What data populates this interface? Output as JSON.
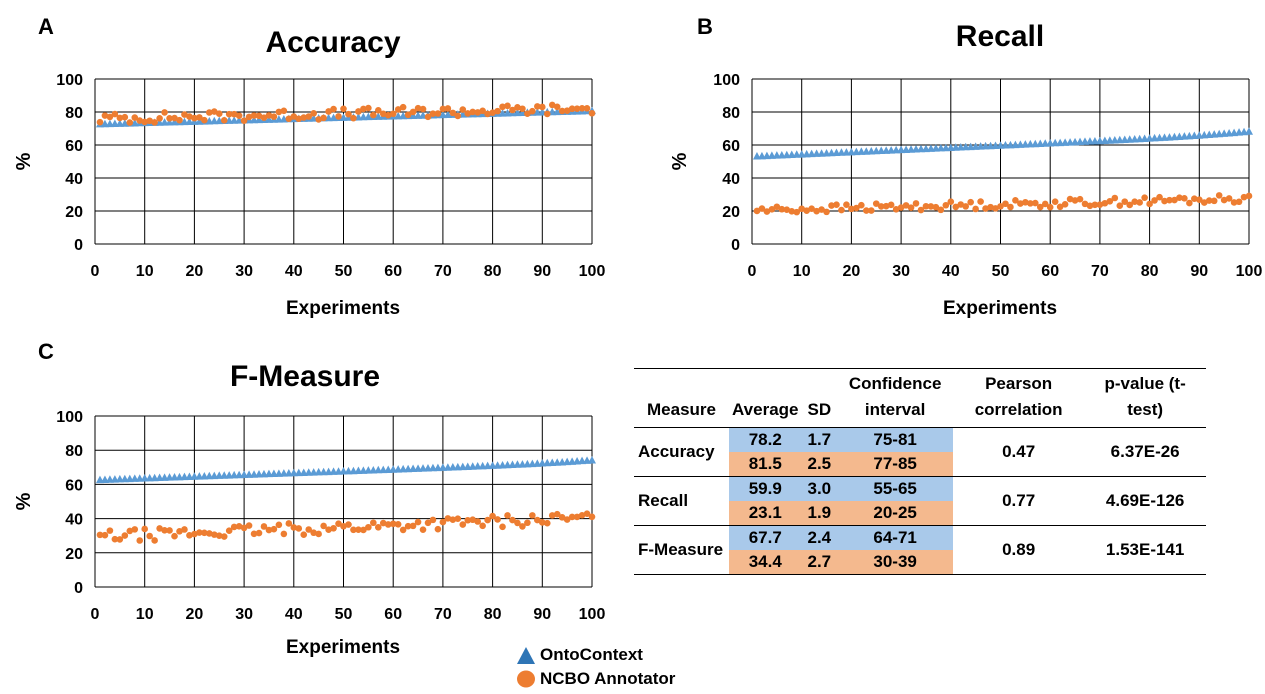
{
  "panels": [
    {
      "letter": "A"
    },
    {
      "letter": "B"
    },
    {
      "letter": "C"
    }
  ],
  "chart_data": [
    {
      "type": "scatter",
      "title": "Accuracy",
      "xlabel": "Experiments",
      "ylabel": "%",
      "xlim": [
        0,
        100
      ],
      "ylim": [
        0,
        100
      ],
      "xticks": [
        "0",
        "10",
        "20",
        "30",
        "40",
        "50",
        "60",
        "70",
        "80",
        "90",
        "100"
      ],
      "yticks": [
        "0",
        "20",
        "40",
        "60",
        "80",
        "100"
      ],
      "grid": true,
      "series": [
        {
          "name": "OntoContext",
          "marker": "triangle",
          "color": "#5b9bd5",
          "start": 72.5,
          "end": 80.5,
          "curve": "linear"
        },
        {
          "name": "NCBO Annotator",
          "marker": "circle",
          "color": "#ed7d31",
          "mean": 81.5,
          "spread": 2.5,
          "start": 76,
          "end": 82
        }
      ]
    },
    {
      "type": "scatter",
      "title": "Recall",
      "xlabel": "Experiments",
      "ylabel": "%",
      "xlim": [
        0,
        100
      ],
      "ylim": [
        0,
        100
      ],
      "xticks": [
        "0",
        "10",
        "20",
        "30",
        "40",
        "50",
        "60",
        "70",
        "80",
        "90",
        "100"
      ],
      "yticks": [
        "0",
        "20",
        "40",
        "60",
        "80",
        "100"
      ],
      "grid": true,
      "series": [
        {
          "name": "OntoContext",
          "marker": "triangle",
          "color": "#5b9bd5",
          "start": 53,
          "end": 68,
          "curve": "tail"
        },
        {
          "name": "NCBO Annotator",
          "marker": "circle",
          "color": "#ed7d31",
          "mean": 23.1,
          "spread": 1.9,
          "start": 20.5,
          "end": 27.5
        }
      ]
    },
    {
      "type": "scatter",
      "title": "F-Measure",
      "xlabel": "Experiments",
      "ylabel": "%",
      "xlim": [
        0,
        100
      ],
      "ylim": [
        0,
        100
      ],
      "xticks": [
        "0",
        "10",
        "20",
        "30",
        "40",
        "50",
        "60",
        "70",
        "80",
        "90",
        "100"
      ],
      "yticks": [
        "0",
        "20",
        "40",
        "60",
        "80",
        "100"
      ],
      "grid": true,
      "series": [
        {
          "name": "OntoContext",
          "marker": "triangle",
          "color": "#5b9bd5",
          "start": 62.5,
          "end": 74,
          "curve": "tail"
        },
        {
          "name": "NCBO Annotator",
          "marker": "circle",
          "color": "#ed7d31",
          "mean": 34.4,
          "spread": 2.7,
          "start": 29.5,
          "end": 40.5
        }
      ]
    }
  ],
  "table": {
    "headers": [
      "Measure",
      "Average",
      "SD",
      "Confidence interval",
      "Pearson correlation",
      "p-value (t-test)"
    ],
    "groups": [
      {
        "measure": "Accuracy",
        "pearson": "0.47",
        "pvalue": "6.37E-26",
        "onto": {
          "avg": "78.2",
          "sd": "1.7",
          "ci": "75-81"
        },
        "ncbo": {
          "avg": "81.5",
          "sd": "2.5",
          "ci": "77-85"
        }
      },
      {
        "measure": "Recall",
        "pearson": "0.77",
        "pvalue": "4.69E-126",
        "onto": {
          "avg": "59.9",
          "sd": "3.0",
          "ci": "55-65"
        },
        "ncbo": {
          "avg": "23.1",
          "sd": "1.9",
          "ci": "20-25"
        }
      },
      {
        "measure": "F-Measure",
        "pearson": "0.89",
        "pvalue": "1.53E-141",
        "onto": {
          "avg": "67.7",
          "sd": "2.4",
          "ci": "64-71"
        },
        "ncbo": {
          "avg": "34.4",
          "sd": "2.7",
          "ci": "30-39"
        }
      }
    ]
  },
  "legend": {
    "items": [
      {
        "label": "OntoContext",
        "icon": "triangle-marker",
        "color": "#2e75b6"
      },
      {
        "label": "NCBO Annotator",
        "icon": "circle-marker",
        "color": "#ed7d31"
      }
    ]
  }
}
